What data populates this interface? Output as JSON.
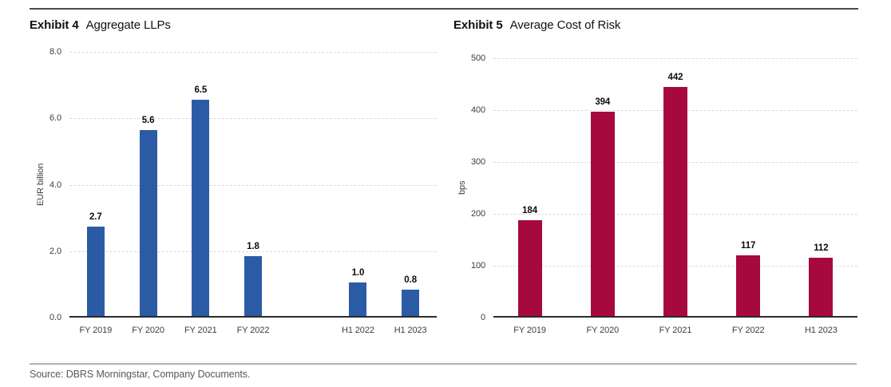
{
  "page": {
    "source_note": "Source: DBRS Morningstar, Company Documents."
  },
  "chart_data": [
    {
      "type": "bar",
      "exhibit": "Exhibit 4",
      "title": "Aggregate LLPs",
      "ylabel": "EUR billion",
      "categories": [
        "FY 2019",
        "FY 2020",
        "FY 2021",
        "FY 2022",
        "H1 2022",
        "H1 2023"
      ],
      "values": [
        2.7,
        5.6,
        6.5,
        1.8,
        1.0,
        0.8
      ],
      "value_labels": [
        "2.7",
        "5.6",
        "6.5",
        "1.8",
        "1.0",
        "0.8"
      ],
      "slot_index": [
        0,
        1,
        2,
        3,
        5,
        6
      ],
      "n_slots": 7,
      "ylim": [
        0,
        8
      ],
      "yticks": [
        0,
        2,
        4,
        6,
        8
      ],
      "ytick_labels": [
        "0.0",
        "2.0",
        "4.0",
        "6.0",
        "8.0"
      ],
      "bar_color": "#2b5ba5",
      "grid": "dashed-horizontal",
      "legend": "none"
    },
    {
      "type": "bar",
      "exhibit": "Exhibit 5",
      "title": "Average Cost of Risk",
      "ylabel": "bps",
      "categories": [
        "FY 2019",
        "FY 2020",
        "FY 2021",
        "FY 2022",
        "H1 2023"
      ],
      "values": [
        184,
        394,
        442,
        117,
        112
      ],
      "value_labels": [
        "184",
        "394",
        "442",
        "117",
        "112"
      ],
      "slot_index": [
        0,
        1,
        2,
        3,
        4
      ],
      "n_slots": 5,
      "ylim": [
        0,
        500
      ],
      "yticks": [
        0,
        100,
        200,
        300,
        400,
        500
      ],
      "ytick_labels": [
        "0",
        "100",
        "200",
        "300",
        "400",
        "500"
      ],
      "bar_color": "#a6093d",
      "grid": "dashed-horizontal",
      "legend": "none"
    }
  ]
}
